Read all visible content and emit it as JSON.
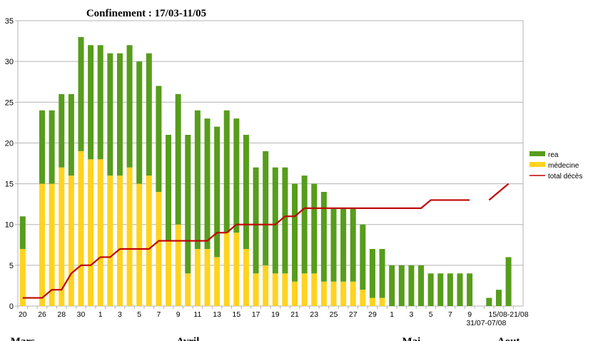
{
  "chart_data": {
    "type": "stacked-bar-line",
    "title": "Confinement : 17/03-11/05",
    "categories": [
      "20",
      null,
      "26",
      null,
      "28",
      null,
      "30",
      null,
      "1",
      null,
      "3",
      null,
      "5",
      null,
      "7",
      null,
      "9",
      null,
      "11",
      null,
      "13",
      null,
      "15",
      null,
      "17",
      null,
      "19",
      null,
      "21",
      null,
      "23",
      null,
      "25",
      null,
      "27",
      null,
      "29",
      null,
      "1",
      null,
      "3",
      null,
      "5",
      null,
      "7",
      null,
      "9",
      null,
      "31/07-07/08",
      null,
      "15/08-21/08",
      null
    ],
    "months": [
      "Mars",
      "Avril",
      "Mai",
      "Aout"
    ],
    "series": [
      {
        "name": "médecine",
        "color": "#ffd320",
        "kind": "bar",
        "values": [
          7,
          null,
          15,
          15,
          17,
          16,
          19,
          18,
          18,
          16,
          16,
          17,
          15,
          16,
          14,
          8,
          10,
          4,
          7,
          7,
          6,
          9,
          9,
          7,
          4,
          5,
          4,
          4,
          3,
          4,
          4,
          3,
          3,
          3,
          3,
          2,
          1,
          1,
          0,
          0,
          0,
          0,
          0,
          0,
          0,
          0,
          0,
          null,
          0,
          0,
          0,
          null
        ]
      },
      {
        "name": "rea",
        "color": "#579d1c",
        "kind": "bar",
        "values": [
          4,
          null,
          9,
          9,
          9,
          10,
          14,
          14,
          14,
          15,
          15,
          15,
          15,
          15,
          13,
          13,
          16,
          17,
          17,
          16,
          16,
          15,
          14,
          14,
          13,
          14,
          13,
          13,
          12,
          12,
          11,
          11,
          9,
          9,
          9,
          8,
          6,
          6,
          5,
          5,
          5,
          5,
          4,
          4,
          4,
          4,
          4,
          null,
          1,
          2,
          6,
          null
        ]
      },
      {
        "name": "total décès",
        "color": "#c00000",
        "kind": "line",
        "values": [
          1,
          1,
          1,
          2,
          2,
          4,
          5,
          5,
          6,
          6,
          7,
          7,
          7,
          7,
          8,
          8,
          8,
          8,
          8,
          8,
          9,
          9,
          10,
          10,
          10,
          10,
          10,
          11,
          11,
          12,
          12,
          12,
          12,
          12,
          12,
          12,
          12,
          12,
          12,
          12,
          12,
          12,
          13,
          13,
          13,
          13,
          13,
          null,
          13,
          14,
          15,
          null
        ]
      }
    ],
    "legend_order": [
      1,
      0,
      2
    ],
    "ylim": [
      0,
      35
    ],
    "yticks": [
      0,
      5,
      10,
      15,
      20,
      25,
      30,
      35
    ],
    "grid": true
  }
}
